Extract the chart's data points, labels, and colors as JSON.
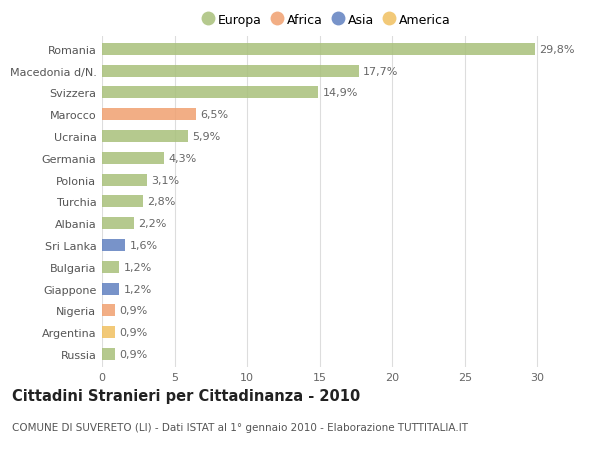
{
  "countries": [
    "Romania",
    "Macedonia d/N.",
    "Svizzera",
    "Marocco",
    "Ucraina",
    "Germania",
    "Polonia",
    "Turchia",
    "Albania",
    "Sri Lanka",
    "Bulgaria",
    "Giappone",
    "Nigeria",
    "Argentina",
    "Russia"
  ],
  "values": [
    29.8,
    17.7,
    14.9,
    6.5,
    5.9,
    4.3,
    3.1,
    2.8,
    2.2,
    1.6,
    1.2,
    1.2,
    0.9,
    0.9,
    0.9
  ],
  "labels": [
    "29,8%",
    "17,7%",
    "14,9%",
    "6,5%",
    "5,9%",
    "4,3%",
    "3,1%",
    "2,8%",
    "2,2%",
    "1,6%",
    "1,2%",
    "1,2%",
    "0,9%",
    "0,9%",
    "0,9%"
  ],
  "continents": [
    "Europa",
    "Europa",
    "Europa",
    "Africa",
    "Europa",
    "Europa",
    "Europa",
    "Europa",
    "Europa",
    "Asia",
    "Europa",
    "Asia",
    "Africa",
    "America",
    "Europa"
  ],
  "continent_colors": {
    "Europa": "#a8c07a",
    "Africa": "#f0a070",
    "Asia": "#6080c0",
    "America": "#f0c060"
  },
  "legend_order": [
    "Europa",
    "Africa",
    "Asia",
    "America"
  ],
  "title": "Cittadini Stranieri per Cittadinanza - 2010",
  "subtitle": "COMUNE DI SUVERETO (LI) - Dati ISTAT al 1° gennaio 2010 - Elaborazione TUTTITALIA.IT",
  "xlim": [
    0,
    31
  ],
  "xticks": [
    0,
    5,
    10,
    15,
    20,
    25,
    30
  ],
  "bg_color": "#ffffff",
  "grid_color": "#dddddd",
  "bar_height": 0.55,
  "label_fontsize": 8.0,
  "title_fontsize": 10.5,
  "subtitle_fontsize": 7.5,
  "tick_fontsize": 8.0,
  "legend_fontsize": 9.0
}
